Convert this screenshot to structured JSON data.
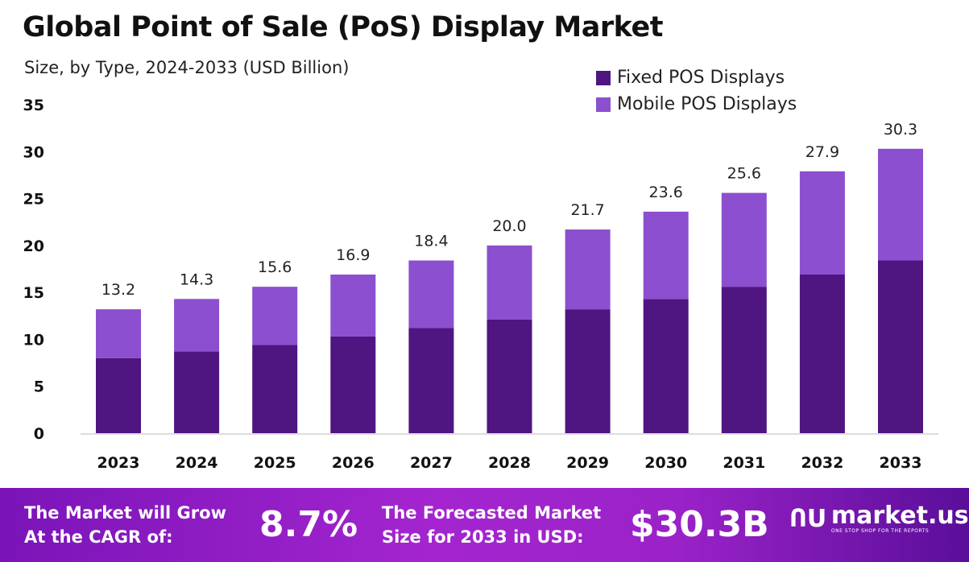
{
  "chart_data": {
    "type": "bar",
    "stacked": true,
    "title": "Global Point of Sale (PoS) Display Market",
    "subtitle": "Size, by Type, 2024-2033 (USD Billion)",
    "xlabel": "",
    "ylabel": "",
    "ylim": [
      0,
      35
    ],
    "yticks": [
      0,
      5,
      10,
      15,
      20,
      25,
      30,
      35
    ],
    "categories": [
      "2023",
      "2024",
      "2025",
      "2026",
      "2027",
      "2028",
      "2029",
      "2030",
      "2031",
      "2032",
      "2033"
    ],
    "series": [
      {
        "name": "Fixed POS Displays",
        "color": "#4f1580",
        "values": [
          8.0,
          8.7,
          9.4,
          10.3,
          11.2,
          12.1,
          13.2,
          14.3,
          15.6,
          16.9,
          18.4
        ]
      },
      {
        "name": "Mobile POS Displays",
        "color": "#8b4fcf",
        "values": [
          5.2,
          5.6,
          6.2,
          6.6,
          7.2,
          7.9,
          8.5,
          9.3,
          10.0,
          11.0,
          11.9
        ]
      }
    ],
    "totals": [
      "13.2",
      "14.3",
      "15.6",
      "16.9",
      "18.4",
      "20.0",
      "21.7",
      "23.6",
      "25.6",
      "27.9",
      "30.3"
    ],
    "legend_position": "top-right",
    "grid": false
  },
  "banner": {
    "cagr_label_1": "The Market will Grow",
    "cagr_label_2": "At the CAGR of:",
    "cagr_value": "8.7%",
    "forecast_label_1": "The Forecasted Market",
    "forecast_label_2": "Size for 2033 in USD:",
    "forecast_value": "$30.3B",
    "logo_name": "market.us",
    "logo_tagline": "ONE STOP SHOP FOR THE REPORTS"
  }
}
